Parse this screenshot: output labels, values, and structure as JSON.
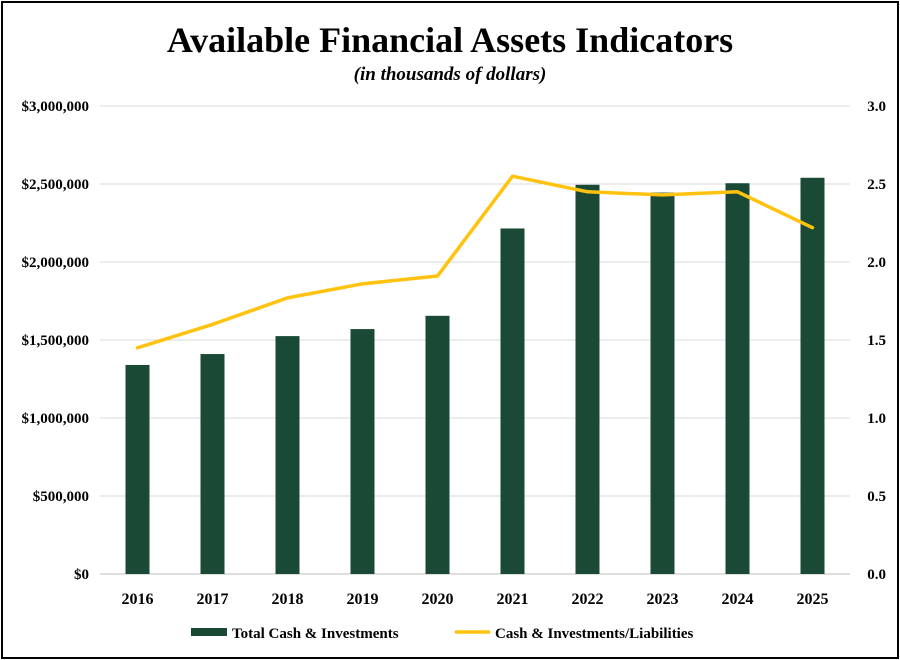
{
  "chart_data": {
    "type": "bar",
    "title": "Available Financial Assets Indicators",
    "subtitle": "(in thousands of dollars)",
    "categories": [
      "2016",
      "2017",
      "2018",
      "2019",
      "2020",
      "2021",
      "2022",
      "2023",
      "2024",
      "2025"
    ],
    "series": [
      {
        "name": "Total Cash & Investments",
        "type": "bar",
        "axis": "left",
        "color": "#1a4a36",
        "values": [
          1340000,
          1410000,
          1525000,
          1570000,
          1655000,
          2215000,
          2495000,
          2445000,
          2505000,
          2540000
        ]
      },
      {
        "name": "Cash & Investments/Liabilities",
        "type": "line",
        "axis": "right",
        "color": "#ffc20e",
        "values": [
          1.45,
          1.6,
          1.77,
          1.86,
          1.91,
          2.55,
          2.45,
          2.43,
          2.45,
          2.22
        ]
      }
    ],
    "y_left": {
      "lim": [
        0,
        3000000
      ],
      "ticks": [
        0,
        500000,
        1000000,
        1500000,
        2000000,
        2500000,
        3000000
      ],
      "tick_labels": [
        "$0",
        "$500,000",
        "$1,000,000",
        "$1,500,000",
        "$2,000,000",
        "$2,500,000",
        "$3,000,000"
      ]
    },
    "y_right": {
      "lim": [
        0,
        3.0
      ],
      "ticks": [
        0,
        0.5,
        1.0,
        1.5,
        2.0,
        2.5,
        3.0
      ],
      "tick_labels": [
        "0.0",
        "0.5",
        "1.0",
        "1.5",
        "2.0",
        "2.5",
        "3.0"
      ]
    },
    "grid": true,
    "legend": "bottom"
  }
}
